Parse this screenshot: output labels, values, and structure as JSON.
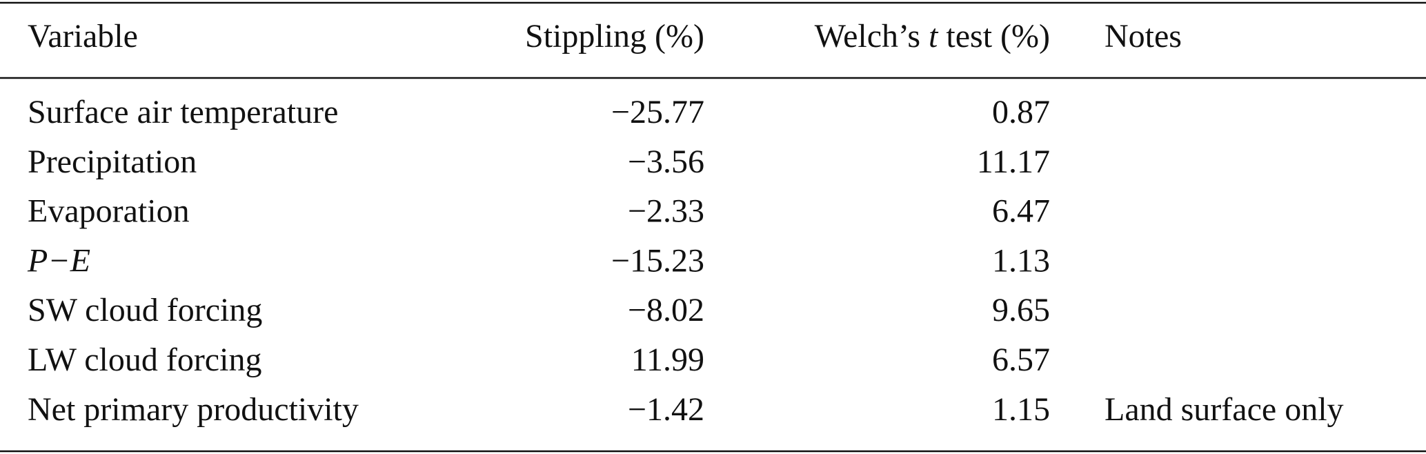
{
  "table": {
    "header": {
      "variable": "Variable",
      "stippling": "Stippling (%)",
      "welch": [
        "Welch’s",
        "t",
        "test (%)"
      ],
      "notes": "Notes"
    },
    "rows": [
      {
        "variable": "Surface air temperature",
        "stippling": "−25.77",
        "welch": "0.87"
      },
      {
        "variable": "Precipitation",
        "stippling": "−3.56",
        "welch": "11.17"
      },
      {
        "variable": "Evaporation",
        "stippling": "−2.33",
        "welch": "6.47"
      },
      {
        "variable": "P−E",
        "italic": true,
        "stippling": "−15.23",
        "welch": "1.13"
      },
      {
        "variable": "SW cloud forcing",
        "stippling": "−8.02",
        "welch": "9.65"
      },
      {
        "variable": "LW cloud forcing",
        "stippling": "11.99",
        "welch": "6.57"
      },
      {
        "variable": "Net primary productivity",
        "stippling": "−1.42",
        "welch": "1.15",
        "notes": "Land surface only"
      }
    ]
  }
}
